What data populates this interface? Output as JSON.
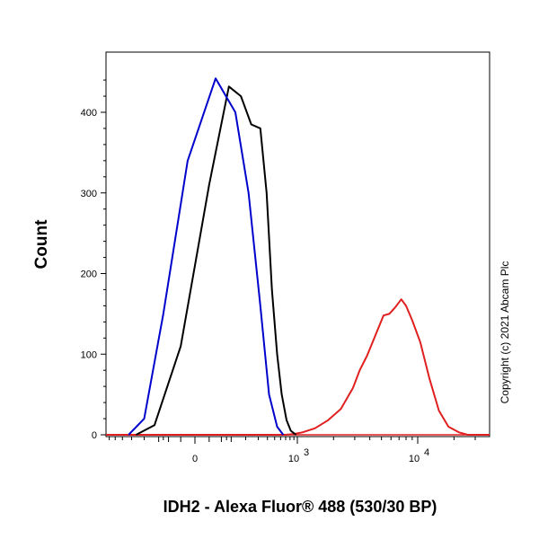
{
  "chart_data": {
    "type": "line",
    "xlabel": "IDH2 - Alexa Fluor® 488 (530/30 BP)",
    "ylabel": "Count",
    "x_scale": "biexponential",
    "xlim": [
      -1500,
      40000
    ],
    "ylim": [
      0,
      470
    ],
    "x_ticks": [
      {
        "value": 0,
        "base": "0",
        "exp": ""
      },
      {
        "value": 1000,
        "base": "10",
        "exp": "3"
      },
      {
        "value": 10000,
        "base": "10",
        "exp": "4"
      }
    ],
    "y_ticks": [
      0,
      100,
      200,
      300,
      400
    ],
    "grid": false,
    "legend": "none",
    "annotation": "Copyright (c) 2021 Abcam Plc",
    "series": [
      {
        "color": "#0000cc",
        "x": [
          -330,
          -200,
          -100,
          -20,
          60,
          140,
          220,
          320,
          420,
          540,
          650
        ],
        "y": [
          0,
          20,
          150,
          340,
          442,
          400,
          300,
          160,
          50,
          10,
          0
        ]
      },
      {
        "color": "#000000",
        "x": [
          -260,
          -140,
          -40,
          40,
          110,
          170,
          240,
          320,
          390,
          460,
          540,
          620,
          720,
          820,
          960
        ],
        "y": [
          0,
          12,
          110,
          310,
          432,
          420,
          385,
          380,
          300,
          180,
          100,
          50,
          18,
          5,
          0
        ]
      },
      {
        "color": "#e02020",
        "x": [
          -1500,
          700,
          900,
          1100,
          1400,
          1800,
          2300,
          2900,
          3300,
          3800,
          4500,
          5200,
          5800,
          6500,
          7300,
          8000,
          9000,
          10500,
          12500,
          15000,
          18000,
          22000,
          26000,
          40000
        ],
        "y": [
          0,
          0,
          1,
          3,
          8,
          18,
          32,
          58,
          80,
          98,
          125,
          148,
          150,
          158,
          168,
          160,
          142,
          115,
          70,
          30,
          10,
          3,
          0,
          0
        ]
      }
    ]
  }
}
